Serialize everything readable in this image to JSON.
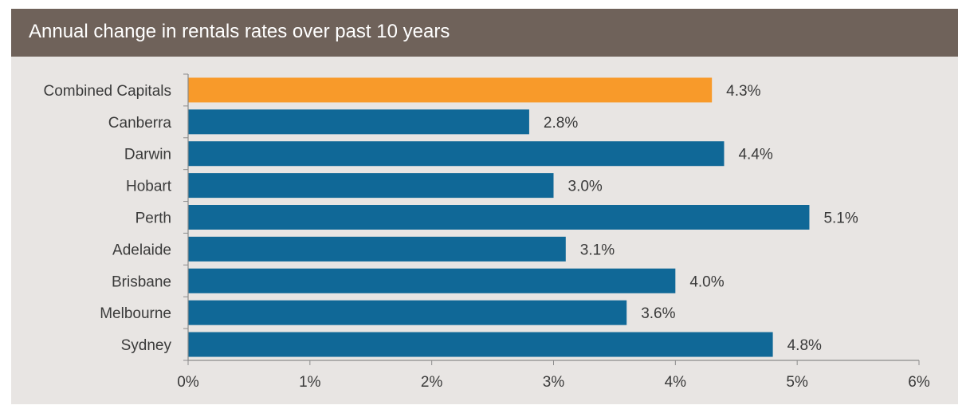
{
  "chart_data": {
    "type": "bar",
    "orientation": "horizontal",
    "title": "Annual change in rentals rates over past 10 years",
    "categories": [
      "Combined Capitals",
      "Canberra",
      "Darwin",
      "Hobart",
      "Perth",
      "Adelaide",
      "Brisbane",
      "Melbourne",
      "Sydney"
    ],
    "values": [
      4.3,
      2.8,
      4.4,
      3.0,
      5.1,
      3.1,
      4.0,
      3.6,
      4.8
    ],
    "value_labels": [
      "4.3%",
      "2.8%",
      "4.4%",
      "3.0%",
      "5.1%",
      "3.1%",
      "4.0%",
      "3.6%",
      "4.8%"
    ],
    "highlight_index": 0,
    "xlim": [
      0,
      6
    ],
    "x_ticks": [
      0,
      1,
      2,
      3,
      4,
      5,
      6
    ],
    "x_tick_labels": [
      "0%",
      "1%",
      "2%",
      "3%",
      "4%",
      "5%",
      "6%"
    ],
    "xlabel": "",
    "ylabel": "",
    "grid": false,
    "legend": "none",
    "colors": {
      "bar": "#106897",
      "highlight": "#f89a2a",
      "header": "#6f625a",
      "panel": "#e8e5e3",
      "axis": "#8c8c8c"
    }
  }
}
